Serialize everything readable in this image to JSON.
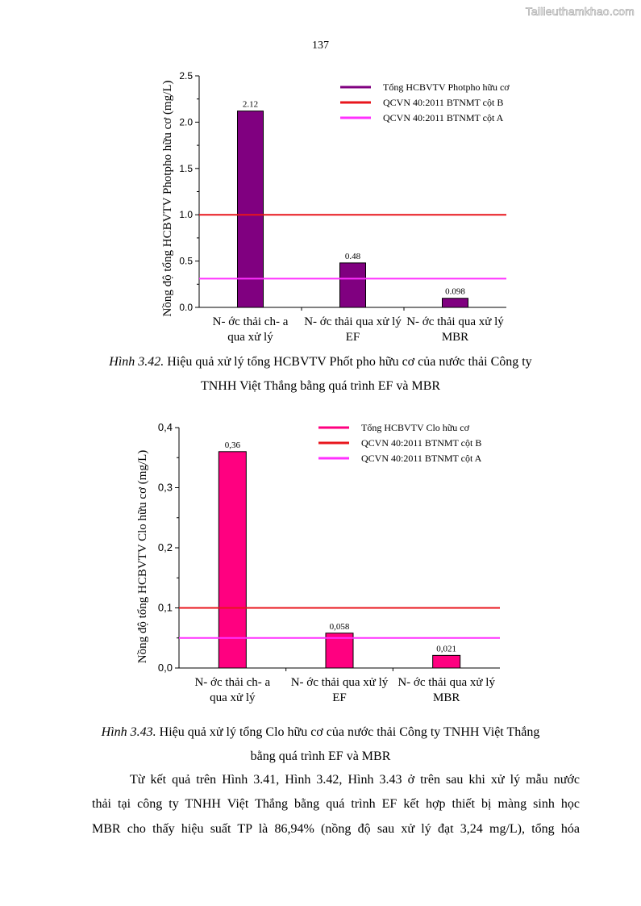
{
  "watermark": "Tailieuthamkhao.com",
  "page_number": "137",
  "chart_data": [
    {
      "type": "bar",
      "categories": [
        "N- ớc thải ch- a\nqua xử lý",
        "N- ớc thải qua xử lý\nEF",
        "N- ớc thải qua xử lý\nMBR"
      ],
      "values": [
        2.12,
        0.48,
        0.098
      ],
      "value_labels": [
        "2.12",
        "0.48",
        "0.098"
      ],
      "ylabel": "Nồng độ tổng HCBVTV Photpho hữu cơ (mg/L)",
      "ylim": [
        0,
        2.5
      ],
      "yticks": [
        0.0,
        0.5,
        1.0,
        1.5,
        2.0,
        2.5
      ],
      "ytick_labels": [
        "0.0",
        "0.5",
        "1.0",
        "1.5",
        "2.0",
        "2.5"
      ],
      "bar_color": "#800080",
      "hlines": [
        {
          "name": "QCVN 40:2011 BTNMT cột B",
          "value": 1.0,
          "color": "#e8161c"
        },
        {
          "name": "QCVN 40:2011 BTNMT cột A",
          "value": 0.31,
          "color": "#ff30ff"
        }
      ],
      "legend": [
        {
          "label": "Tổng HCBVTV Photpho hữu cơ",
          "color": "#800080"
        },
        {
          "label": "QCVN 40:2011 BTNMT cột B",
          "color": "#e8161c"
        },
        {
          "label": "QCVN 40:2011 BTNMT cột A",
          "color": "#ff30ff"
        }
      ],
      "legend_position": "top-right",
      "grid": false
    },
    {
      "type": "bar",
      "categories": [
        "N- ớc thải ch- a\nqua xử lý",
        "N- ớc thải qua xử lý\nEF",
        "N- ớc thải qua xử lý\nMBR"
      ],
      "values": [
        0.36,
        0.058,
        0.021
      ],
      "value_labels": [
        "0,36",
        "0,058",
        "0,021"
      ],
      "ylabel": "Nồng độ tổng HCBVTV Clo hữu cơ (mg/L)",
      "ylim": [
        0,
        0.4
      ],
      "yticks": [
        0.0,
        0.1,
        0.2,
        0.3,
        0.4
      ],
      "ytick_labels": [
        "0,0",
        "0,1",
        "0,2",
        "0,3",
        "0,4"
      ],
      "bar_color": "#ff0080",
      "hlines": [
        {
          "name": "QCVN 40:2011 BTNMT cột B",
          "value": 0.1,
          "color": "#e8161c"
        },
        {
          "name": "QCVN 40:2011 BTNMT cột A",
          "value": 0.05,
          "color": "#ff30ff"
        }
      ],
      "legend": [
        {
          "label": "Tổng HCBVTV Clo hữu cơ",
          "color": "#ff0080"
        },
        {
          "label": "QCVN 40:2011 BTNMT cột B",
          "color": "#e8161c"
        },
        {
          "label": "QCVN 40:2011 BTNMT cột A",
          "color": "#ff30ff"
        }
      ],
      "legend_position": "top-right",
      "grid": false
    }
  ],
  "captions": {
    "fig342": {
      "label": "Hình 3.42.",
      "line1": " Hiệu quả xử lý tổng HCBVTV Phốt pho hữu cơ của nước thải Công ty",
      "line2": "TNHH Việt Thắng bằng quá trình EF và MBR"
    },
    "fig343": {
      "label": "Hình 3.43.",
      "line1": " Hiệu quả xử lý tổng Clo hữu cơ của nước thải Công ty TNHH Việt Thắng",
      "line2": "bằng quá trình EF và MBR"
    }
  },
  "paragraph": {
    "line1": "Từ kết quả trên Hình 3.41, Hình 3.42, Hình 3.43 ở trên sau khi xử lý mẫu nước",
    "line2": "thải tại công ty TNHH Việt Thắng bằng quá trình EF kết hợp thiết bị màng sinh học",
    "line3": "MBR cho thấy hiệu suất TP là 86,94% (nồng độ sau xử lý đạt 3,24 mg/L), tổng hóa"
  }
}
